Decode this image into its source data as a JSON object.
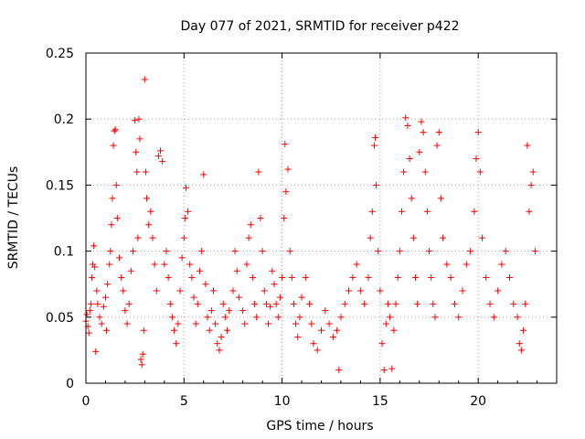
{
  "chart_data": {
    "type": "scatter",
    "title": "Day 077 of 2021, SRMTID for receiver p422",
    "xlabel": "GPS time / hours",
    "ylabel": "SRMTID / TECUs",
    "xlim": [
      0,
      24
    ],
    "ylim": [
      0,
      0.25
    ],
    "x_ticks": [
      0,
      5,
      10,
      15,
      20
    ],
    "x_tick_labels": [
      "0",
      "5",
      "10",
      "15",
      "20"
    ],
    "y_ticks": [
      0,
      0.05,
      0.1,
      0.15,
      0.2,
      0.25
    ],
    "y_tick_labels": [
      "0",
      "0.05",
      "0.1",
      "0.15",
      "0.2",
      "0.25"
    ],
    "grid": true,
    "marker": "+",
    "color": "#ff0000",
    "series": [
      {
        "name": "SRMTID",
        "points": [
          [
            0.0,
            0.047
          ],
          [
            0.05,
            0.052
          ],
          [
            0.1,
            0.043
          ],
          [
            0.15,
            0.038
          ],
          [
            0.2,
            0.055
          ],
          [
            0.25,
            0.06
          ],
          [
            0.3,
            0.08
          ],
          [
            0.35,
            0.09
          ],
          [
            0.4,
            0.104
          ],
          [
            0.45,
            0.088
          ],
          [
            0.5,
            0.024
          ],
          [
            0.55,
            0.07
          ],
          [
            0.6,
            0.06
          ],
          [
            0.7,
            0.05
          ],
          [
            0.8,
            0.045
          ],
          [
            0.9,
            0.058
          ],
          [
            1.0,
            0.065
          ],
          [
            1.05,
            0.04
          ],
          [
            1.1,
            0.075
          ],
          [
            1.2,
            0.09
          ],
          [
            1.25,
            0.1
          ],
          [
            1.3,
            0.12
          ],
          [
            1.35,
            0.14
          ],
          [
            1.4,
            0.18
          ],
          [
            1.45,
            0.191
          ],
          [
            1.5,
            0.192
          ],
          [
            1.55,
            0.15
          ],
          [
            1.6,
            0.125
          ],
          [
            1.7,
            0.095
          ],
          [
            1.8,
            0.08
          ],
          [
            1.9,
            0.07
          ],
          [
            2.0,
            0.055
          ],
          [
            2.1,
            0.045
          ],
          [
            2.2,
            0.06
          ],
          [
            2.3,
            0.085
          ],
          [
            2.4,
            0.1
          ],
          [
            2.5,
            0.199
          ],
          [
            2.55,
            0.175
          ],
          [
            2.6,
            0.16
          ],
          [
            2.65,
            0.11
          ],
          [
            2.7,
            0.2
          ],
          [
            2.75,
            0.185
          ],
          [
            2.8,
            0.018
          ],
          [
            2.85,
            0.014
          ],
          [
            2.9,
            0.022
          ],
          [
            2.95,
            0.04
          ],
          [
            3.0,
            0.23
          ],
          [
            3.05,
            0.16
          ],
          [
            3.1,
            0.14
          ],
          [
            3.2,
            0.12
          ],
          [
            3.3,
            0.13
          ],
          [
            3.4,
            0.11
          ],
          [
            3.5,
            0.09
          ],
          [
            3.6,
            0.07
          ],
          [
            3.7,
            0.172
          ],
          [
            3.8,
            0.176
          ],
          [
            3.9,
            0.168
          ],
          [
            4.0,
            0.09
          ],
          [
            4.1,
            0.1
          ],
          [
            4.2,
            0.08
          ],
          [
            4.3,
            0.06
          ],
          [
            4.4,
            0.05
          ],
          [
            4.5,
            0.04
          ],
          [
            4.6,
            0.03
          ],
          [
            4.7,
            0.045
          ],
          [
            4.8,
            0.07
          ],
          [
            4.9,
            0.095
          ],
          [
            5.0,
            0.11
          ],
          [
            5.05,
            0.125
          ],
          [
            5.1,
            0.148
          ],
          [
            5.2,
            0.13
          ],
          [
            5.3,
            0.09
          ],
          [
            5.4,
            0.08
          ],
          [
            5.5,
            0.065
          ],
          [
            5.6,
            0.045
          ],
          [
            5.7,
            0.06
          ],
          [
            5.8,
            0.085
          ],
          [
            5.9,
            0.1
          ],
          [
            6.0,
            0.158
          ],
          [
            6.1,
            0.075
          ],
          [
            6.2,
            0.05
          ],
          [
            6.3,
            0.04
          ],
          [
            6.4,
            0.055
          ],
          [
            6.5,
            0.07
          ],
          [
            6.6,
            0.045
          ],
          [
            6.7,
            0.03
          ],
          [
            6.8,
            0.025
          ],
          [
            6.9,
            0.035
          ],
          [
            7.0,
            0.06
          ],
          [
            7.1,
            0.05
          ],
          [
            7.2,
            0.04
          ],
          [
            7.3,
            0.055
          ],
          [
            7.5,
            0.07
          ],
          [
            7.6,
            0.1
          ],
          [
            7.7,
            0.085
          ],
          [
            7.8,
            0.065
          ],
          [
            8.0,
            0.055
          ],
          [
            8.1,
            0.045
          ],
          [
            8.2,
            0.09
          ],
          [
            8.3,
            0.11
          ],
          [
            8.4,
            0.12
          ],
          [
            8.5,
            0.08
          ],
          [
            8.6,
            0.06
          ],
          [
            8.7,
            0.05
          ],
          [
            8.8,
            0.16
          ],
          [
            8.9,
            0.125
          ],
          [
            9.0,
            0.1
          ],
          [
            9.1,
            0.07
          ],
          [
            9.2,
            0.06
          ],
          [
            9.3,
            0.045
          ],
          [
            9.4,
            0.058
          ],
          [
            9.5,
            0.085
          ],
          [
            9.6,
            0.075
          ],
          [
            9.7,
            0.06
          ],
          [
            9.8,
            0.05
          ],
          [
            9.9,
            0.065
          ],
          [
            10.0,
            0.08
          ],
          [
            10.1,
            0.125
          ],
          [
            10.15,
            0.181
          ],
          [
            10.2,
            0.145
          ],
          [
            10.3,
            0.162
          ],
          [
            10.4,
            0.1
          ],
          [
            10.5,
            0.08
          ],
          [
            10.6,
            0.06
          ],
          [
            10.7,
            0.045
          ],
          [
            10.8,
            0.035
          ],
          [
            10.9,
            0.05
          ],
          [
            11.0,
            0.065
          ],
          [
            11.2,
            0.08
          ],
          [
            11.4,
            0.06
          ],
          [
            11.5,
            0.045
          ],
          [
            11.6,
            0.03
          ],
          [
            11.8,
            0.025
          ],
          [
            12.0,
            0.04
          ],
          [
            12.2,
            0.055
          ],
          [
            12.4,
            0.045
          ],
          [
            12.6,
            0.035
          ],
          [
            12.8,
            0.04
          ],
          [
            12.9,
            0.01
          ],
          [
            13.0,
            0.05
          ],
          [
            13.2,
            0.06
          ],
          [
            13.4,
            0.07
          ],
          [
            13.6,
            0.08
          ],
          [
            13.8,
            0.09
          ],
          [
            14.0,
            0.07
          ],
          [
            14.2,
            0.06
          ],
          [
            14.4,
            0.08
          ],
          [
            14.5,
            0.11
          ],
          [
            14.6,
            0.13
          ],
          [
            14.7,
            0.18
          ],
          [
            14.75,
            0.186
          ],
          [
            14.8,
            0.15
          ],
          [
            14.9,
            0.1
          ],
          [
            15.0,
            0.07
          ],
          [
            15.1,
            0.03
          ],
          [
            15.2,
            0.01
          ],
          [
            15.3,
            0.045
          ],
          [
            15.4,
            0.06
          ],
          [
            15.5,
            0.05
          ],
          [
            15.6,
            0.011
          ],
          [
            15.7,
            0.04
          ],
          [
            15.8,
            0.06
          ],
          [
            15.9,
            0.08
          ],
          [
            16.0,
            0.1
          ],
          [
            16.1,
            0.13
          ],
          [
            16.2,
            0.16
          ],
          [
            16.3,
            0.201
          ],
          [
            16.4,
            0.195
          ],
          [
            16.5,
            0.17
          ],
          [
            16.6,
            0.14
          ],
          [
            16.7,
            0.11
          ],
          [
            16.8,
            0.08
          ],
          [
            16.9,
            0.06
          ],
          [
            17.0,
            0.175
          ],
          [
            17.1,
            0.198
          ],
          [
            17.2,
            0.19
          ],
          [
            17.3,
            0.16
          ],
          [
            17.4,
            0.13
          ],
          [
            17.5,
            0.1
          ],
          [
            17.6,
            0.08
          ],
          [
            17.7,
            0.06
          ],
          [
            17.8,
            0.05
          ],
          [
            17.9,
            0.18
          ],
          [
            18.0,
            0.19
          ],
          [
            18.1,
            0.14
          ],
          [
            18.2,
            0.11
          ],
          [
            18.4,
            0.09
          ],
          [
            18.6,
            0.08
          ],
          [
            18.8,
            0.06
          ],
          [
            19.0,
            0.05
          ],
          [
            19.2,
            0.07
          ],
          [
            19.4,
            0.09
          ],
          [
            19.6,
            0.1
          ],
          [
            19.8,
            0.13
          ],
          [
            19.9,
            0.17
          ],
          [
            20.0,
            0.19
          ],
          [
            20.1,
            0.16
          ],
          [
            20.2,
            0.11
          ],
          [
            20.4,
            0.08
          ],
          [
            20.6,
            0.06
          ],
          [
            20.8,
            0.05
          ],
          [
            21.0,
            0.07
          ],
          [
            21.2,
            0.09
          ],
          [
            21.4,
            0.1
          ],
          [
            21.6,
            0.08
          ],
          [
            21.8,
            0.06
          ],
          [
            22.0,
            0.05
          ],
          [
            22.1,
            0.03
          ],
          [
            22.2,
            0.025
          ],
          [
            22.3,
            0.04
          ],
          [
            22.4,
            0.06
          ],
          [
            22.5,
            0.18
          ],
          [
            22.6,
            0.13
          ],
          [
            22.7,
            0.15
          ],
          [
            22.8,
            0.16
          ],
          [
            22.9,
            0.1
          ]
        ]
      }
    ]
  }
}
